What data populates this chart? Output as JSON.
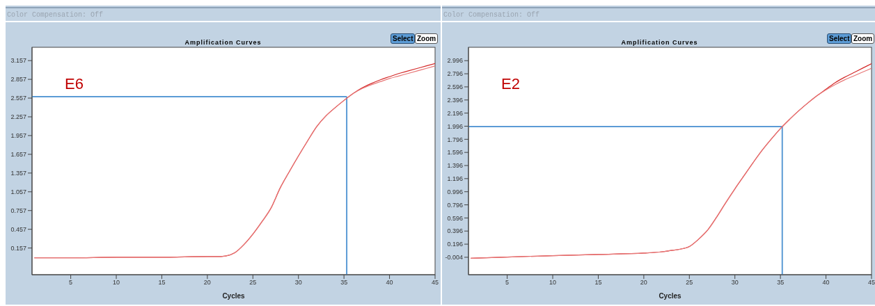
{
  "chart_data": [
    {
      "type": "line",
      "title": "Amplification Curves",
      "xlabel": "Cycles",
      "marker": "none",
      "annotations": [
        "E6",
        "Color Compensation: Off",
        "Select",
        "Zoom"
      ],
      "x": [
        1,
        5,
        10,
        15,
        20,
        21,
        22,
        23,
        24,
        25,
        26,
        27,
        28,
        29,
        30,
        31,
        32,
        33,
        34,
        35,
        36,
        37,
        38,
        39,
        40,
        41,
        42,
        43,
        44,
        45
      ],
      "series": [
        {
          "color": "#d42a2a",
          "values": [
            0.0,
            0.0,
            0.01,
            0.01,
            0.02,
            0.02,
            0.03,
            0.08,
            0.21,
            0.38,
            0.58,
            0.8,
            1.12,
            1.38,
            1.63,
            1.87,
            2.1,
            2.27,
            2.4,
            2.52,
            2.63,
            2.72,
            2.79,
            2.85,
            2.9,
            2.95,
            2.99,
            3.03,
            3.07,
            3.11
          ]
        },
        {
          "color": "#e87878",
          "values": [
            0.0,
            0.0,
            0.01,
            0.01,
            0.02,
            0.02,
            0.03,
            0.08,
            0.21,
            0.38,
            0.58,
            0.8,
            1.12,
            1.38,
            1.63,
            1.87,
            2.1,
            2.27,
            2.4,
            2.52,
            2.63,
            2.71,
            2.77,
            2.82,
            2.87,
            2.91,
            2.95,
            2.99,
            3.03,
            3.07
          ]
        }
      ],
      "xlim": [
        0.75,
        45
      ],
      "xticks": [
        5,
        10,
        15,
        20,
        25,
        30,
        35,
        40,
        45
      ],
      "ylim": [
        -0.27,
        3.37
      ],
      "yticks": [
        0.157,
        0.457,
        0.757,
        1.057,
        1.357,
        1.657,
        1.957,
        2.257,
        2.557,
        2.857,
        3.157
      ],
      "ref_lines": [
        {
          "axis": "y",
          "value": 2.58,
          "color": "#5b9bd5"
        },
        {
          "axis": "x",
          "value": 35.3,
          "color": "#5b9bd5"
        }
      ]
    },
    {
      "type": "line",
      "title": "Amplification Curves",
      "xlabel": "Cycles",
      "marker": "none",
      "annotations": [
        "E2",
        "Color Compensation: Off",
        "Select",
        "Zoom"
      ],
      "x": [
        1,
        5,
        10,
        15,
        20,
        22,
        23,
        24,
        25,
        26,
        27,
        28,
        29,
        30,
        31,
        32,
        33,
        34,
        35,
        36,
        37,
        38,
        39,
        40,
        41,
        42,
        43,
        44,
        45
      ],
      "series": [
        {
          "color": "#d42a2a",
          "values": [
            -0.02,
            0.0,
            0.02,
            0.04,
            0.06,
            0.08,
            0.1,
            0.12,
            0.16,
            0.27,
            0.41,
            0.61,
            0.83,
            1.04,
            1.24,
            1.44,
            1.63,
            1.8,
            1.96,
            2.1,
            2.23,
            2.35,
            2.46,
            2.56,
            2.66,
            2.74,
            2.81,
            2.88,
            2.95
          ]
        },
        {
          "color": "#e87878",
          "values": [
            -0.02,
            0.0,
            0.02,
            0.04,
            0.06,
            0.08,
            0.1,
            0.12,
            0.16,
            0.27,
            0.41,
            0.61,
            0.83,
            1.04,
            1.24,
            1.44,
            1.63,
            1.8,
            1.96,
            2.1,
            2.23,
            2.35,
            2.46,
            2.55,
            2.63,
            2.7,
            2.76,
            2.82,
            2.88
          ]
        }
      ],
      "xlim": [
        0.75,
        45
      ],
      "xticks": [
        5,
        10,
        15,
        20,
        25,
        30,
        35,
        40,
        45
      ],
      "ylim": [
        -0.27,
        3.2
      ],
      "yticks": [
        -0.004,
        0.196,
        0.396,
        0.596,
        0.796,
        0.996,
        1.196,
        1.396,
        1.596,
        1.796,
        1.996,
        2.196,
        2.396,
        2.596,
        2.796,
        2.996
      ],
      "ref_lines": [
        {
          "axis": "y",
          "value": 1.99,
          "color": "#5b9bd5"
        },
        {
          "axis": "x",
          "value": 35.2,
          "color": "#5b9bd5"
        }
      ]
    }
  ]
}
